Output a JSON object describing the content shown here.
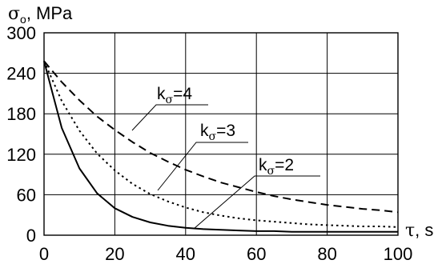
{
  "chart_data": {
    "type": "line",
    "ylabel": "σ₀, MPa",
    "xlabel": "τ, s",
    "xlim": [
      0,
      100
    ],
    "ylim": [
      0,
      300
    ],
    "x_ticks": [
      "0",
      "20",
      "40",
      "60",
      "80",
      "100"
    ],
    "y_ticks": [
      "0",
      "60",
      "120",
      "180",
      "240",
      "300"
    ],
    "grid": true,
    "x": [
      0,
      5,
      10,
      15,
      20,
      25,
      30,
      35,
      40,
      45,
      50,
      55,
      60,
      65,
      70,
      75,
      80,
      85,
      90,
      95,
      100
    ],
    "series": [
      {
        "name": "kσ=2",
        "style": "solid",
        "values": [
          258,
          159,
          99,
          62,
          40,
          27,
          19,
          14,
          11,
          9,
          8,
          7,
          6,
          6,
          5,
          5,
          5,
          5,
          5,
          5,
          5
        ]
      },
      {
        "name": "kσ=3",
        "style": "dotted",
        "values": [
          258,
          199,
          155,
          121,
          96,
          76,
          61,
          50,
          41,
          34,
          29,
          25,
          22,
          20,
          18,
          16,
          15,
          14,
          13,
          13,
          12
        ]
      },
      {
        "name": "kσ=4",
        "style": "dashed",
        "values": [
          258,
          227,
          200,
          176,
          156,
          138,
          122,
          109,
          97,
          87,
          78,
          71,
          64,
          58,
          53,
          49,
          45,
          42,
          39,
          37,
          34
        ]
      }
    ],
    "annotations": [
      {
        "prefix": "k",
        "sub": "σ",
        "suffix": "=4"
      },
      {
        "prefix": "k",
        "sub": "σ",
        "suffix": "=3"
      },
      {
        "prefix": "k",
        "sub": "σ",
        "suffix": "=2"
      }
    ]
  }
}
